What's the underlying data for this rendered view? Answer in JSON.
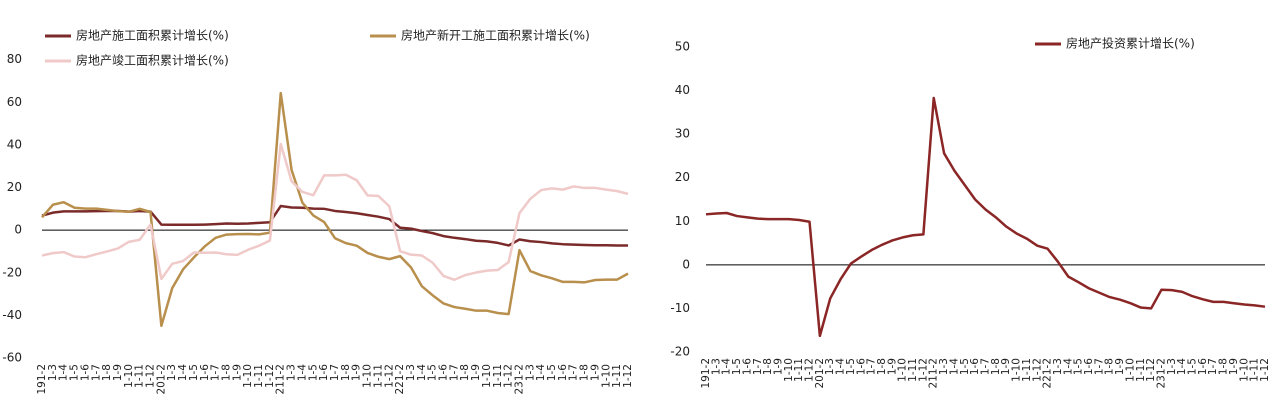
{
  "chart_data": [
    {
      "type": "line",
      "categories": [
        "191-2",
        "1-3",
        "1-4",
        "1-5",
        "1-6",
        "1-7",
        "1-8",
        "1-9",
        "1-10",
        "1-11",
        "1-12",
        "201-2",
        "1-3",
        "1-4",
        "1-5",
        "1-6",
        "1-7",
        "1-8",
        "1-9",
        "1-10",
        "1-11",
        "1-12",
        "211-2",
        "1-3",
        "1-4",
        "1-5",
        "1-6",
        "1-7",
        "1-8",
        "1-9",
        "1-10",
        "1-11",
        "1-12",
        "221-2",
        "1-3",
        "1-4",
        "1-5",
        "1-6",
        "1-7",
        "1-8",
        "1-9",
        "1-10",
        "1-11",
        "1-12",
        "231-2",
        "1-3",
        "1-4",
        "1-5",
        "1-6",
        "1-7",
        "1-8",
        "1-9",
        "1-10",
        "1-11",
        "1-12"
      ],
      "ylim": [
        -60,
        100
      ],
      "yticks": [
        -60,
        -40,
        -20,
        0,
        20,
        40,
        60,
        80
      ],
      "zero_line": true,
      "series": [
        {
          "name": "房地产施工面积累计增长(%)",
          "color": "#7b2a2a",
          "values": [
            6.8,
            8.2,
            8.8,
            8.8,
            8.8,
            8.9,
            9.0,
            9.0,
            8.7,
            9.0,
            8.7,
            2.6,
            2.5,
            2.5,
            2.5,
            2.6,
            2.8,
            3.1,
            3.0,
            3.1,
            3.4,
            3.7,
            11.3,
            10.6,
            10.5,
            10.1,
            10.0,
            9.0,
            8.5,
            7.9,
            7.1,
            6.3,
            5.2,
            1.1,
            0.7,
            -0.4,
            -1.4,
            -2.8,
            -3.6,
            -4.2,
            -5.0,
            -5.3,
            -6.0,
            -7.2,
            -4.4,
            -5.2,
            -5.6,
            -6.2,
            -6.6,
            -6.8,
            -7.0,
            -7.1,
            -7.1,
            -7.2,
            -7.2
          ]
        },
        {
          "name": "房地产新开工施工面积累计增长(%)",
          "color": "#b88f4c",
          "values": [
            6.0,
            11.9,
            13.1,
            10.5,
            10.1,
            10.1,
            9.5,
            8.9,
            8.6,
            10.0,
            8.5,
            -44.9,
            -27.2,
            -18.4,
            -12.8,
            -7.6,
            -3.6,
            -2.1,
            -1.9,
            -1.8,
            -2.0,
            -1.2,
            64.3,
            28.2,
            12.8,
            6.9,
            3.8,
            -3.8,
            -6.1,
            -7.3,
            -10.7,
            -12.5,
            -13.6,
            -12.2,
            -17.5,
            -26.3,
            -30.6,
            -34.4,
            -36.1,
            -36.9,
            -37.8,
            -37.8,
            -38.9,
            -39.4,
            -9.4,
            -19.2,
            -21.2,
            -22.6,
            -24.3,
            -24.3,
            -24.5,
            -23.4,
            -23.2,
            -23.2,
            -20.4
          ]
        },
        {
          "name": "房地产竣工面积累计增长(%)",
          "color": "#f0c9c9",
          "values": [
            -11.9,
            -10.8,
            -10.3,
            -12.4,
            -12.7,
            -11.3,
            -10.0,
            -8.6,
            -5.5,
            -4.5,
            2.6,
            -22.9,
            -15.8,
            -14.5,
            -10.5,
            -10.6,
            -10.5,
            -11.3,
            -11.6,
            -9.2,
            -7.3,
            -4.9,
            40.4,
            22.9,
            17.9,
            16.4,
            25.7,
            25.7,
            26.0,
            23.4,
            16.3,
            16.0,
            11.2,
            -9.9,
            -11.5,
            -11.9,
            -15.3,
            -21.5,
            -23.3,
            -21.1,
            -19.9,
            -19.0,
            -18.7,
            -15.0,
            8.0,
            14.7,
            18.8,
            19.6,
            19.0,
            20.5,
            19.8,
            19.8,
            19.0,
            18.3,
            17.0
          ]
        }
      ]
    },
    {
      "type": "line",
      "categories": [
        "191-2",
        "1-3",
        "1-4",
        "1-5",
        "1-6",
        "1-7",
        "1-8",
        "1-9",
        "1-10",
        "1-11",
        "1-12",
        "201-2",
        "1-3",
        "1-4",
        "1-5",
        "1-6",
        "1-7",
        "1-8",
        "1-9",
        "1-10",
        "1-11",
        "1-12",
        "211-2",
        "1-3",
        "1-4",
        "1-5",
        "1-6",
        "1-7",
        "1-8",
        "1-9",
        "1-10",
        "1-11",
        "1-12",
        "221-2",
        "1-3",
        "1-4",
        "1-5",
        "1-6",
        "1-7",
        "1-8",
        "1-9",
        "1-10",
        "1-11",
        "1-12",
        "231-2",
        "1-3",
        "1-4",
        "1-5",
        "1-6",
        "1-7",
        "1-8",
        "1-9",
        "1-10",
        "1-11",
        "1-12"
      ],
      "ylim": [
        -20,
        50
      ],
      "yticks": [
        -20,
        -10,
        0,
        10,
        20,
        30,
        40,
        50
      ],
      "zero_line": true,
      "series": [
        {
          "name": "房地产投资累计增长(%)",
          "color": "#8b2626",
          "values": [
            11.6,
            11.8,
            11.9,
            11.2,
            10.9,
            10.6,
            10.5,
            10.5,
            10.5,
            10.3,
            9.9,
            -16.3,
            -7.7,
            -3.3,
            0.3,
            1.9,
            3.4,
            4.6,
            5.6,
            6.3,
            6.8,
            7.0,
            38.3,
            25.6,
            21.6,
            18.3,
            15.0,
            12.7,
            10.9,
            8.8,
            7.2,
            6.0,
            4.4,
            3.7,
            0.7,
            -2.7,
            -4.0,
            -5.4,
            -6.4,
            -7.4,
            -8.0,
            -8.8,
            -9.8,
            -10.0,
            -5.7,
            -5.8,
            -6.2,
            -7.2,
            -7.9,
            -8.5,
            -8.5,
            -8.8,
            -9.1,
            -9.3,
            -9.6
          ]
        }
      ]
    }
  ]
}
